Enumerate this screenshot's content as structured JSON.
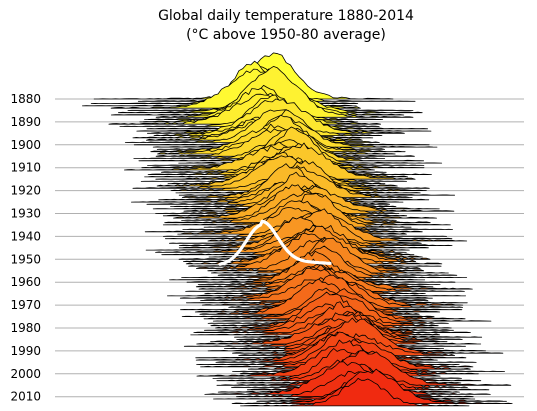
{
  "chart_data": {
    "type": "ridgeline",
    "title": "Global daily temperature 1880-2014",
    "subtitle": "(°C above 1950-80 average)",
    "xlabel": "",
    "ylabel": "",
    "year_range": [
      1880,
      2014
    ],
    "ytick_labels": [
      "1880",
      "1890",
      "1900",
      "1910",
      "1920",
      "1930",
      "1940",
      "1950",
      "1960",
      "1970",
      "1980",
      "1990",
      "2000",
      "2010"
    ],
    "grid": true,
    "grid_color": "#b0b0b0",
    "line_color": "#000000",
    "color_start": "#ffff33",
    "color_end": "#f02a10",
    "highlight": {
      "year": 1950,
      "color": "#ffffff"
    }
  }
}
